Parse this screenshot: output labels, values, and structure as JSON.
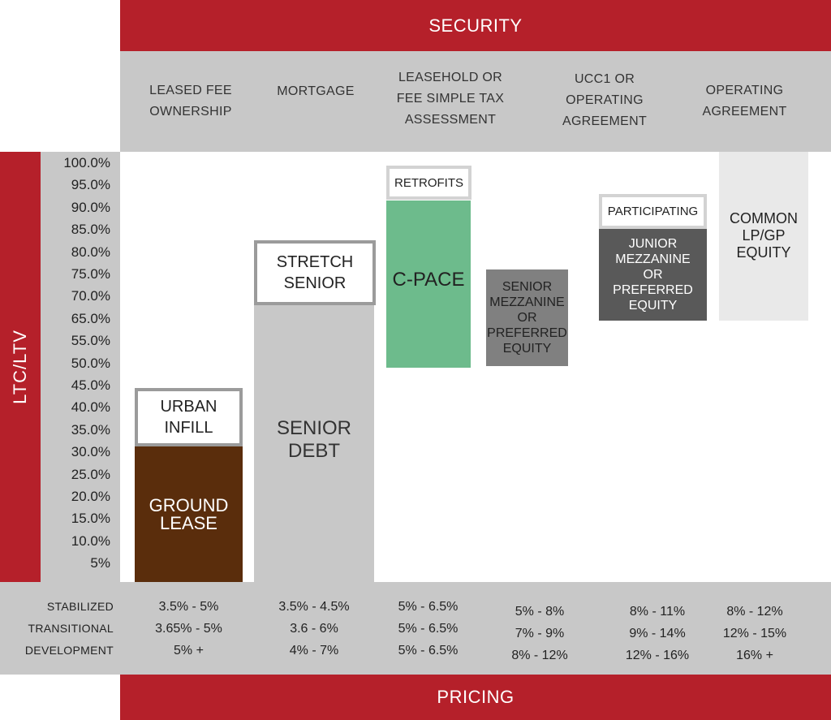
{
  "security": {
    "title": "SECURITY",
    "headers": [
      "LEASED FEE\nOWNERSHIP",
      "MORTGAGE",
      "LEASEHOLD OR\nFEE SIMPLE TAX\nASSESSMENT",
      "UCC1 OR\nOPERATING\nAGREEMENT",
      "OPERATING\nAGREEMENT"
    ]
  },
  "axis": {
    "label": "LTC/LTV",
    "ticks": [
      "100.0%",
      "95.0%",
      "90.0%",
      "85.0%",
      "80.0%",
      "75.0%",
      "70.0%",
      "65.0%",
      "55.0%",
      "50.0%",
      "45.0%",
      "40.0%",
      "35.0%",
      "30.0%",
      "25.0%",
      "20.0%",
      "15.0%",
      "10.0%",
      "5%"
    ]
  },
  "blocks": {
    "urban_infill": "URBAN\nINFILL",
    "ground_lease": "GROUND\nLEASE",
    "stretch_senior": "STRETCH\nSENIOR",
    "senior_debt": "SENIOR\nDEBT",
    "retrofits": "RETROFITS",
    "c_pace": "C-PACE",
    "senior_mezz": "SENIOR\nMEZZANINE\nOR\nPREFERRED\nEQUITY",
    "participating": "PARTICIPATING",
    "junior_mezz": "JUNIOR\nMEZZANINE\nOR\nPREFERRED\nEQUITY",
    "common_equity": "COMMON\nLP/GP\nEQUITY"
  },
  "colors": {
    "banner": "#b5202a",
    "ground_lease": "#5a2d0c",
    "c_pace": "#6dbb8c",
    "senior_mezz": "#808080",
    "junior_mezz": "#595959",
    "common_equity": "#e9e9e9",
    "senior_debt": "#c8c8c8"
  },
  "pricing": {
    "title": "PRICING",
    "rows": [
      "STABILIZED",
      "TRANSITIONAL",
      "DEVELOPMENT"
    ],
    "columns": [
      [
        "3.5% - 5%",
        "3.65% - 5%",
        "5% +"
      ],
      [
        "3.5% - 4.5%",
        "3.6 - 6%",
        "4% - 7%"
      ],
      [
        "5% - 6.5%",
        "5% - 6.5%",
        "5% - 6.5%"
      ],
      [
        "5% - 8%",
        "7% - 9%",
        "8% - 12%"
      ],
      [
        "8% - 11%",
        "9% - 14%",
        "12% - 16%"
      ],
      [
        "8% - 12%",
        "12% - 15%",
        "16% +"
      ]
    ]
  }
}
